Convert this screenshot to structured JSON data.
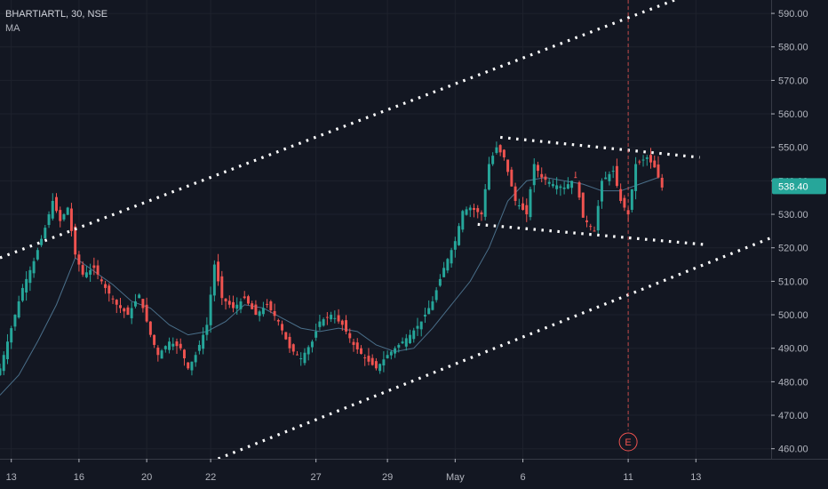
{
  "header": {
    "symbol_line": "BHARTIARTL, 30, NSE",
    "indicator": "MA"
  },
  "last_price_label": "538.40",
  "earnings_marker": "E",
  "colors": {
    "background": "#131722",
    "up": "#26a69a",
    "down": "#ef5350",
    "ma": "#4a6f8a",
    "grid": "#1e222d",
    "trend": "#ffffff",
    "earnings": "#ef5350"
  },
  "chart_data": {
    "type": "candlestick",
    "title": "BHARTIARTL, 30, NSE",
    "y_axis": {
      "ylim": [
        457,
        594
      ],
      "ticks": [
        460,
        470,
        480,
        490,
        500,
        510,
        520,
        530,
        540,
        550,
        560,
        570,
        580,
        590
      ],
      "tick_labels": [
        "460.00",
        "470.00",
        "480.00",
        "490.00",
        "500.00",
        "510.00",
        "520.00",
        "530.00",
        "540.00",
        "550.00",
        "560.00",
        "570.00",
        "580.00",
        "590.00"
      ]
    },
    "x_axis": {
      "tick_labels": [
        "13",
        "16",
        "20",
        "22",
        "27",
        "29",
        "May",
        "6",
        "11",
        "13"
      ],
      "bar_range": [
        0,
        205
      ]
    },
    "x_tick_bars": [
      3,
      21,
      39,
      56,
      84,
      103,
      121,
      139,
      167,
      185
    ],
    "price_path": [
      [
        0,
        484
      ],
      [
        3,
        496
      ],
      [
        6,
        508
      ],
      [
        9,
        516
      ],
      [
        12,
        526
      ],
      [
        14,
        534
      ],
      [
        16,
        528
      ],
      [
        18,
        532
      ],
      [
        20,
        518
      ],
      [
        22,
        512
      ],
      [
        25,
        514
      ],
      [
        28,
        508
      ],
      [
        31,
        503
      ],
      [
        34,
        500
      ],
      [
        37,
        506
      ],
      [
        40,
        494
      ],
      [
        42,
        488
      ],
      [
        45,
        492
      ],
      [
        48,
        490
      ],
      [
        50,
        484
      ],
      [
        52,
        488
      ],
      [
        55,
        497
      ],
      [
        57,
        515
      ],
      [
        59,
        505
      ],
      [
        62,
        502
      ],
      [
        65,
        505
      ],
      [
        68,
        500
      ],
      [
        71,
        503
      ],
      [
        74,
        498
      ],
      [
        77,
        490
      ],
      [
        80,
        487
      ],
      [
        83,
        492
      ],
      [
        85,
        498
      ],
      [
        88,
        500
      ],
      [
        91,
        497
      ],
      [
        94,
        491
      ],
      [
        97,
        487
      ],
      [
        100,
        484
      ],
      [
        103,
        488
      ],
      [
        106,
        491
      ],
      [
        109,
        494
      ],
      [
        112,
        498
      ],
      [
        115,
        504
      ],
      [
        118,
        514
      ],
      [
        121,
        522
      ],
      [
        123,
        531
      ],
      [
        125,
        532
      ],
      [
        128,
        530
      ],
      [
        130,
        545
      ],
      [
        132,
        550
      ],
      [
        134,
        547
      ],
      [
        137,
        534
      ],
      [
        140,
        530
      ],
      [
        142,
        545
      ],
      [
        144,
        541
      ],
      [
        147,
        539
      ],
      [
        150,
        538
      ],
      [
        153,
        541
      ],
      [
        155,
        529
      ],
      [
        158,
        525
      ],
      [
        160,
        540
      ],
      [
        163,
        543
      ],
      [
        165,
        534
      ],
      [
        167,
        530
      ],
      [
        169,
        545
      ],
      [
        172,
        547
      ],
      [
        174,
        544
      ],
      [
        176,
        538
      ]
    ],
    "moving_average": [
      [
        0,
        476
      ],
      [
        5,
        482
      ],
      [
        10,
        492
      ],
      [
        15,
        503
      ],
      [
        20,
        517
      ],
      [
        25,
        513
      ],
      [
        30,
        509
      ],
      [
        35,
        504
      ],
      [
        40,
        502
      ],
      [
        45,
        497
      ],
      [
        50,
        494
      ],
      [
        55,
        495
      ],
      [
        60,
        498
      ],
      [
        65,
        503
      ],
      [
        70,
        502
      ],
      [
        75,
        499
      ],
      [
        80,
        496
      ],
      [
        85,
        495
      ],
      [
        90,
        496
      ],
      [
        95,
        495
      ],
      [
        100,
        491
      ],
      [
        105,
        489
      ],
      [
        110,
        490
      ],
      [
        115,
        496
      ],
      [
        120,
        503
      ],
      [
        125,
        510
      ],
      [
        130,
        520
      ],
      [
        135,
        534
      ],
      [
        140,
        540
      ],
      [
        145,
        541
      ],
      [
        150,
        540
      ],
      [
        155,
        539
      ],
      [
        160,
        537
      ],
      [
        165,
        537
      ],
      [
        170,
        539
      ],
      [
        175,
        541
      ]
    ],
    "trendlines": [
      {
        "name": "upper-channel",
        "points": [
          [
            0,
            517
          ],
          [
            205,
            605
          ]
        ]
      },
      {
        "name": "lower-channel",
        "points": [
          [
            58,
            457
          ],
          [
            205,
            523
          ]
        ]
      },
      {
        "name": "triangle-top",
        "points": [
          [
            133,
            553
          ],
          [
            186,
            547
          ]
        ]
      },
      {
        "name": "triangle-bottom",
        "points": [
          [
            127,
            527
          ],
          [
            187,
            521
          ]
        ]
      }
    ],
    "earnings_bar": 167,
    "last_price": 538.4
  }
}
